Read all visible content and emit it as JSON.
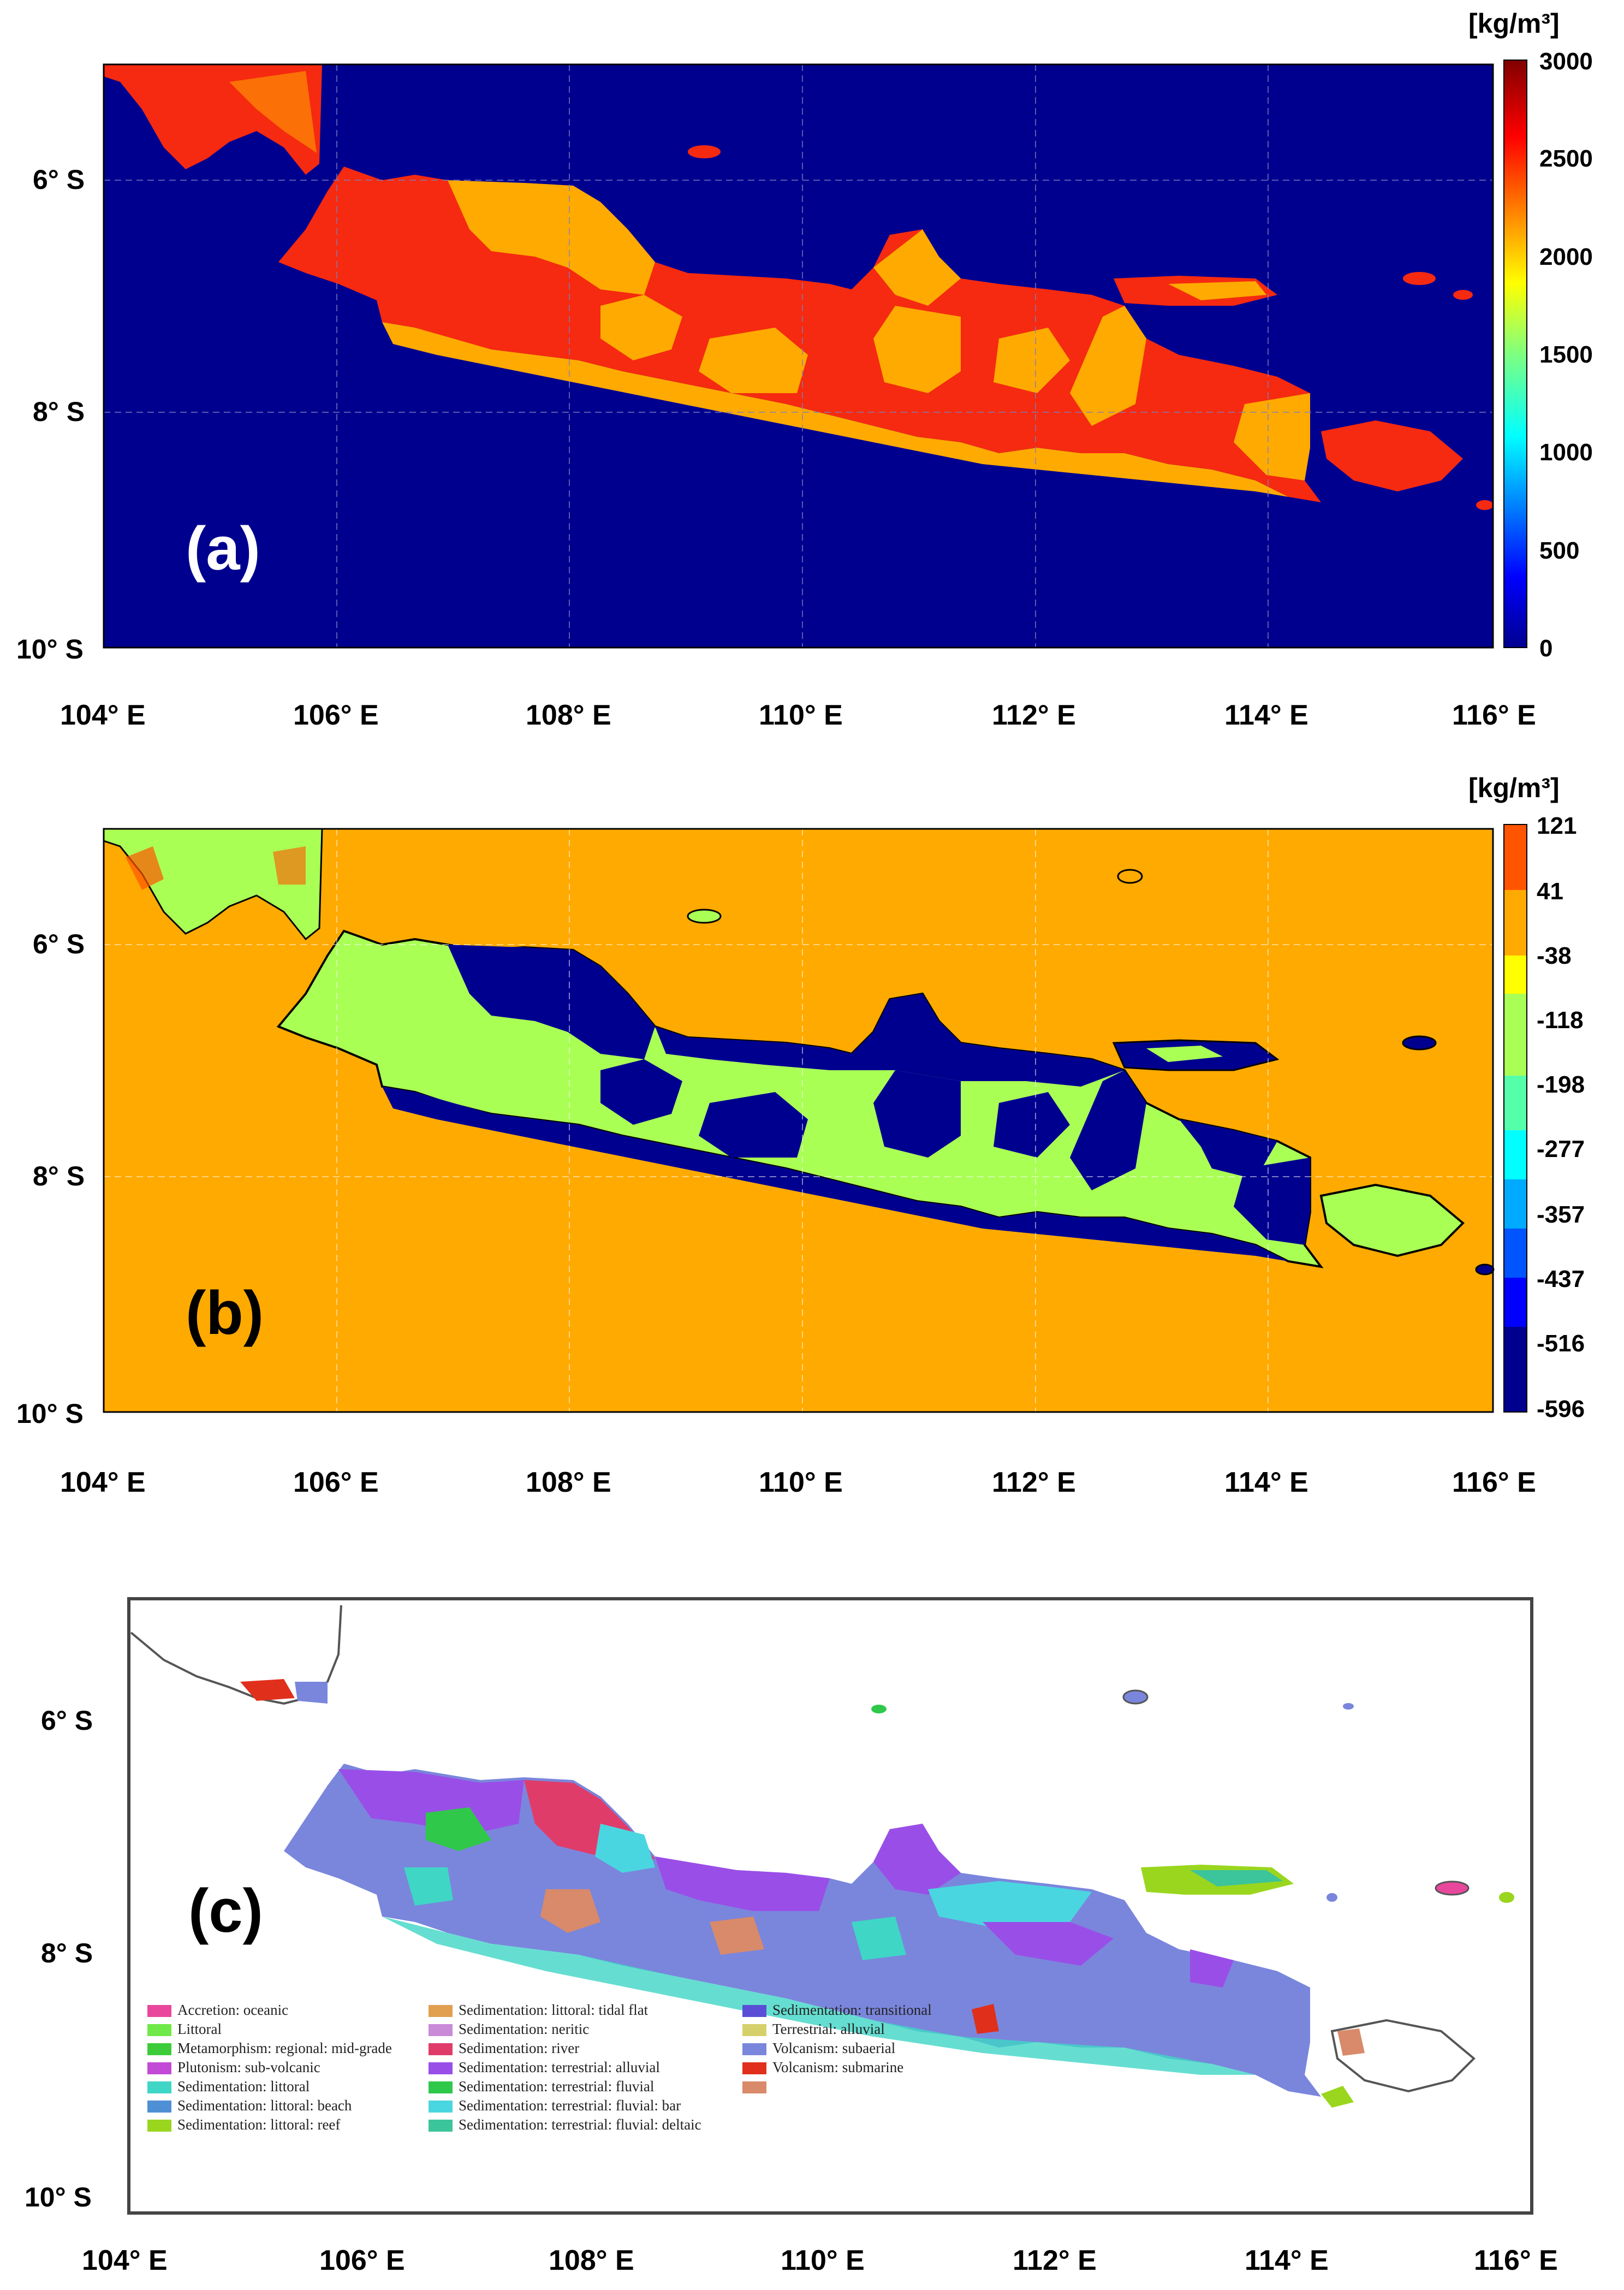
{
  "panel_a": {
    "label": "(a)",
    "unit": "[kg/m³]",
    "colorbar_ticks": [
      "3000",
      "2500",
      "2000",
      "1500",
      "1000",
      "500",
      "0"
    ],
    "y_ticks": [
      "6° S",
      "8° S",
      "10° S"
    ],
    "x_ticks": [
      "104° E",
      "106° E",
      "108° E",
      "110° E",
      "112° E",
      "114° E",
      "116° E"
    ],
    "colors": {
      "sea": "#00008f",
      "land_high": "#f52a10",
      "land_mid": "#ffaa00"
    }
  },
  "panel_b": {
    "label": "(b)",
    "unit": "[kg/m³]",
    "colorbar_ticks": [
      "121",
      "41",
      "-38",
      "-118",
      "-198",
      "-277",
      "-357",
      "-437",
      "-516",
      "-596"
    ],
    "y_ticks": [
      "6° S",
      "8° S",
      "10° S"
    ],
    "x_ticks": [
      "104° E",
      "106° E",
      "108° E",
      "110° E",
      "112° E",
      "114° E",
      "116° E"
    ],
    "colors": {
      "sea": "#ffaa00",
      "land_main": "#aaff55",
      "land_low": "#00008f"
    }
  },
  "panel_c": {
    "label": "(c)",
    "y_ticks": [
      "6° S",
      "8° S",
      "10° S"
    ],
    "x_ticks": [
      "104° E",
      "106° E",
      "108° E",
      "110° E",
      "112° E",
      "114° E",
      "116° E"
    ],
    "legend": [
      {
        "label": "Accretion: oceanic",
        "color": "#e8479c"
      },
      {
        "label": "Littoral",
        "color": "#6fe84a"
      },
      {
        "label": "Metamorphism: regional: mid-grade",
        "color": "#3ccc3a"
      },
      {
        "label": "Plutonism: sub-volcanic",
        "color": "#c34ad6"
      },
      {
        "label": "Sedimentation: littoral",
        "color": "#3fd6c6"
      },
      {
        "label": "Sedimentation: littoral: beach",
        "color": "#4f8fd6"
      },
      {
        "label": "Sedimentation: littoral: reef",
        "color": "#9ad61e"
      },
      {
        "label": "Sedimentation: littoral: tidal flat",
        "color": "#e0a050"
      },
      {
        "label": "Sedimentation: neritic",
        "color": "#c98ad8"
      },
      {
        "label": "Sedimentation: river",
        "color": "#e03c6a"
      },
      {
        "label": "Sedimentation: terrestrial: alluvial",
        "color": "#9a4ee8"
      },
      {
        "label": "Sedimentation: terrestrial: fluvial",
        "color": "#2fc84a"
      },
      {
        "label": "Sedimentation: terrestrial: fluvial: bar",
        "color": "#4ad6e0"
      },
      {
        "label": "Sedimentation: terrestrial: fluvial: deltaic",
        "color": "#3cc49a"
      },
      {
        "label": "Sedimentation: transitional",
        "color": "#5a4ed6"
      },
      {
        "label": "Terrestrial: alluvial",
        "color": "#d6d06a"
      },
      {
        "label": "Volcanism: subaerial",
        "color": "#7a86dc"
      },
      {
        "label": "Volcanism: submarine",
        "color": "#e0301c"
      },
      {
        "label": "",
        "color": "#d88a6a"
      }
    ]
  }
}
